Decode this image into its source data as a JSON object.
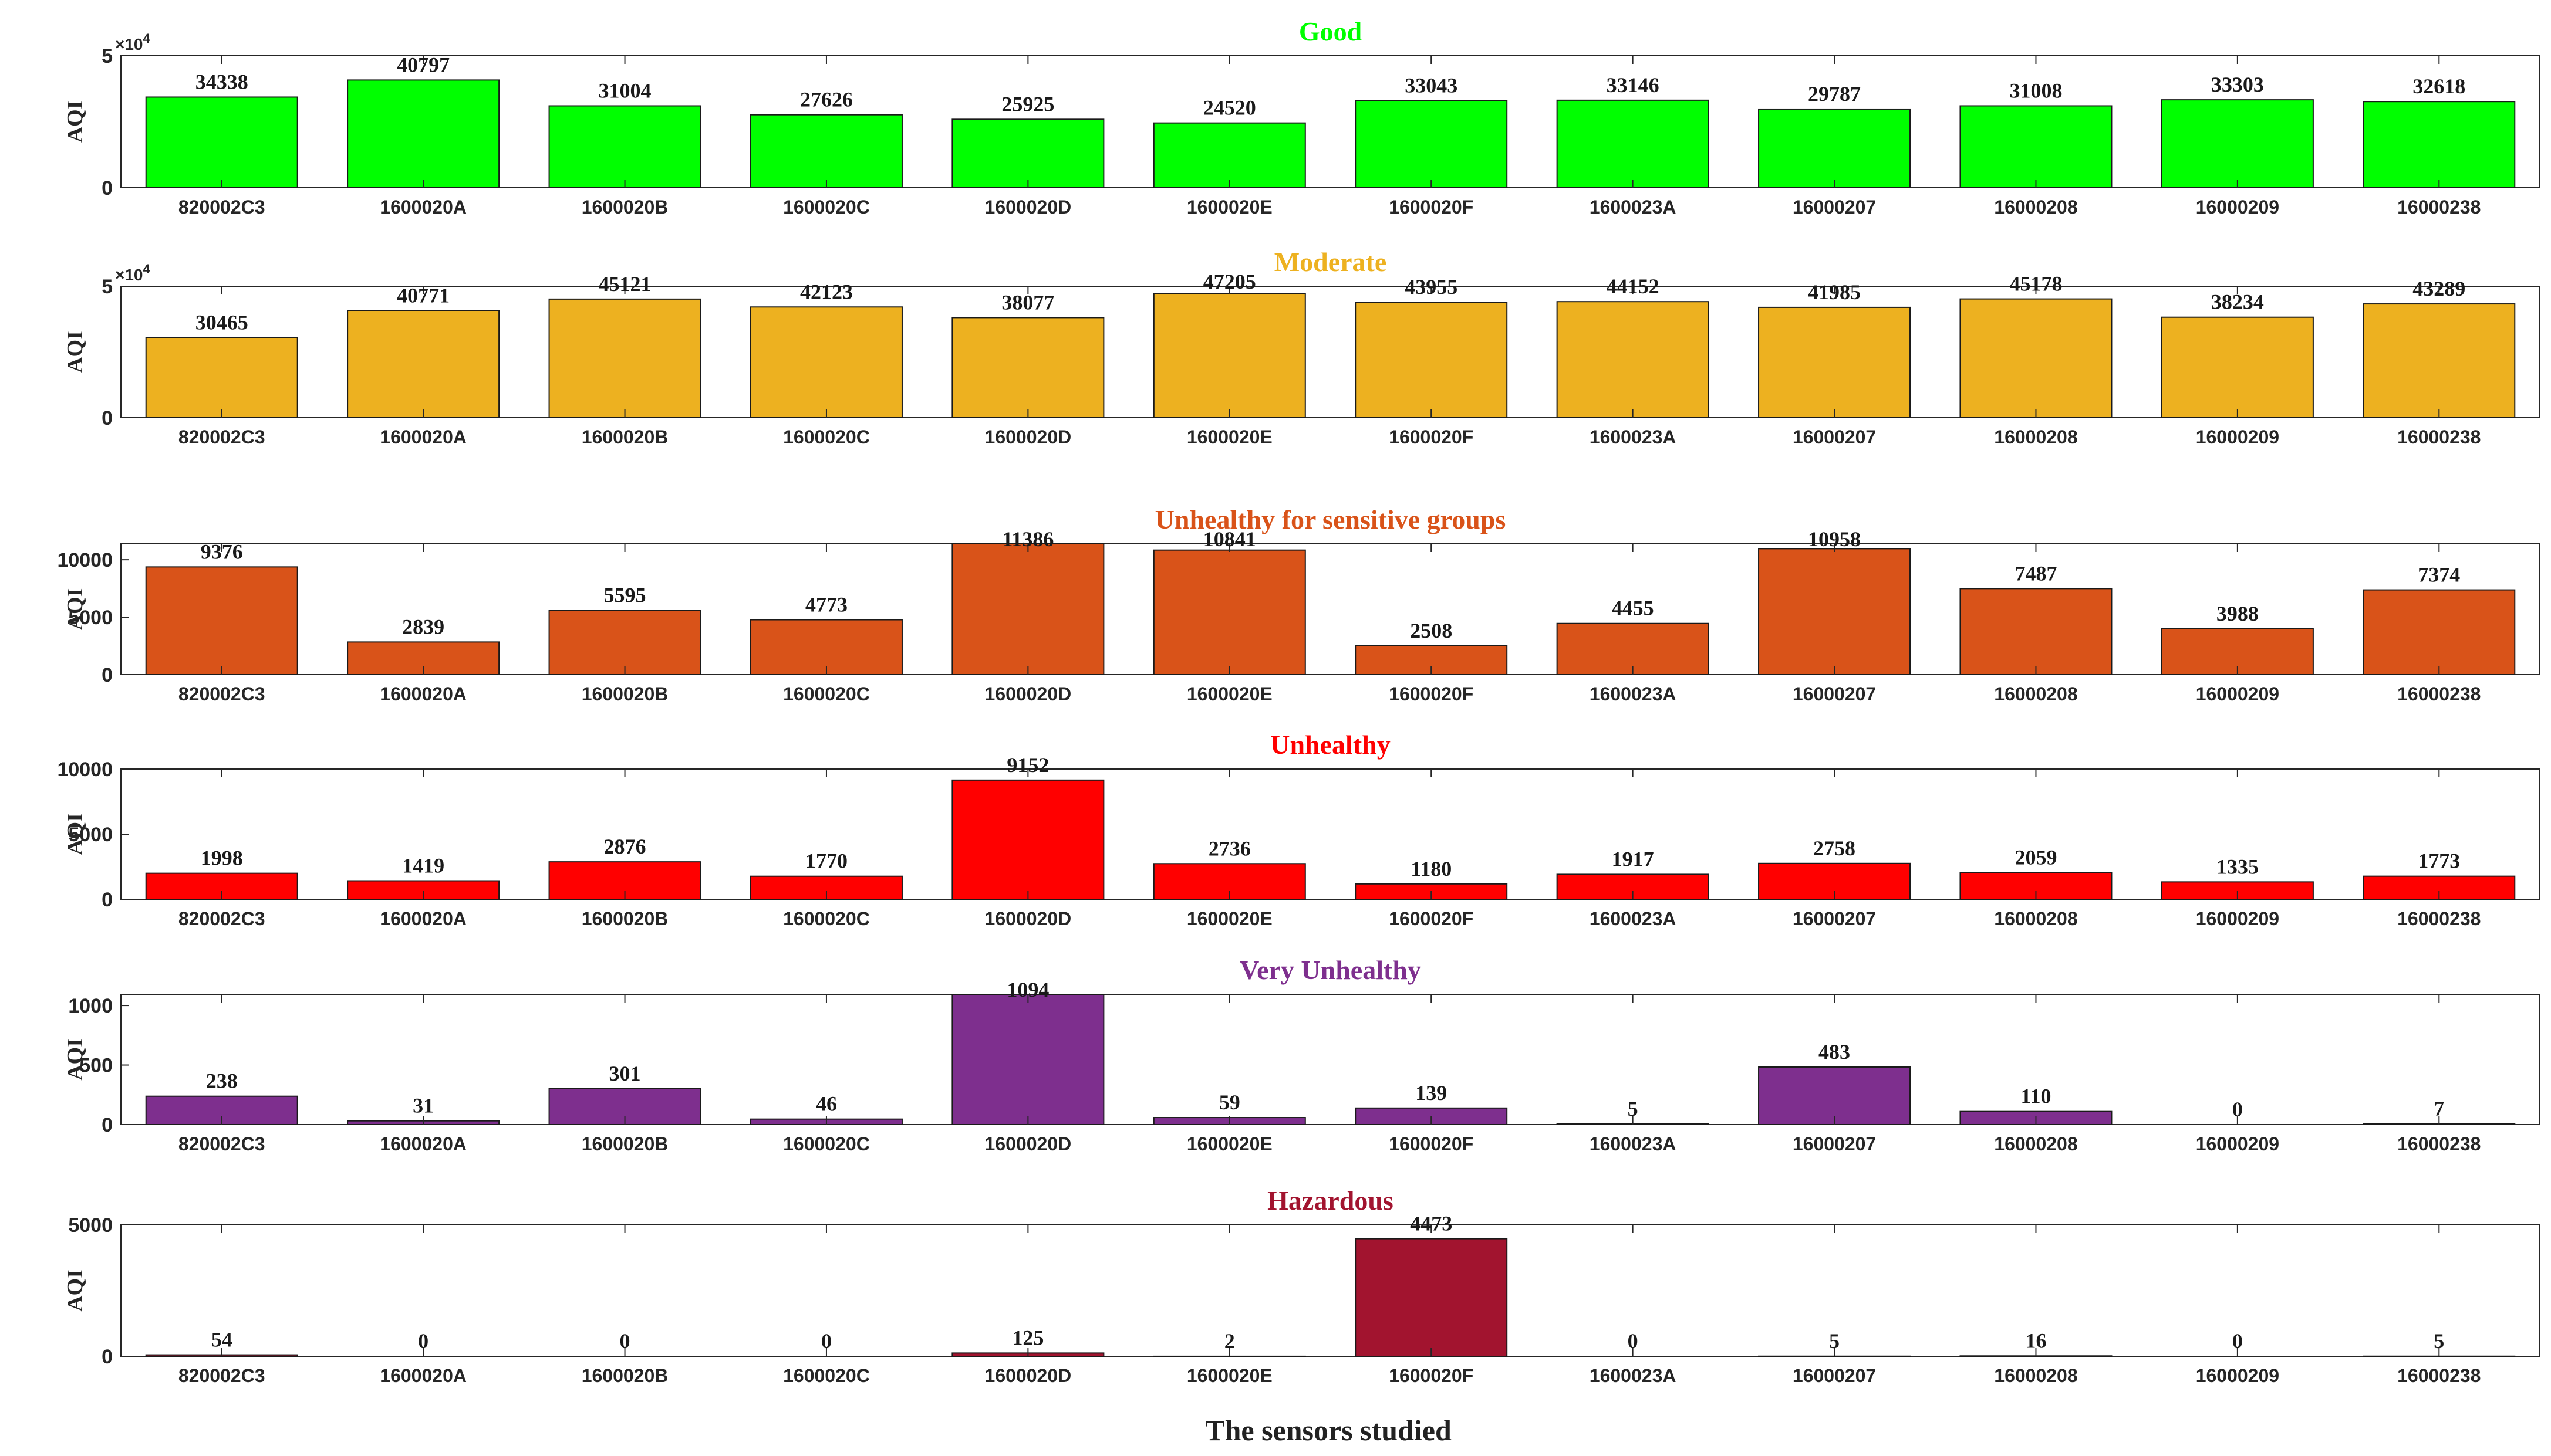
{
  "chart_data": {
    "type": "bar",
    "xlabel": "The sensors studied",
    "ylabel": "AQI",
    "categories": [
      "820002C3",
      "1600020A",
      "1600020B",
      "1600020C",
      "1600020D",
      "1600020E",
      "1600020F",
      "1600023A",
      "16000207",
      "16000208",
      "16000209",
      "16000238"
    ],
    "panels": [
      {
        "title": "Good",
        "color": "#00FF00",
        "ylim": [
          0,
          50000
        ],
        "yticks": [
          "0",
          "5"
        ],
        "exponent_label": "×10",
        "exponent_power": "4",
        "values": [
          34338,
          40797,
          31004,
          27626,
          25925,
          24520,
          33043,
          33146,
          29787,
          31008,
          33303,
          32618
        ]
      },
      {
        "title": "Moderate",
        "color": "#EDB120",
        "ylim": [
          0,
          50000
        ],
        "yticks": [
          "0",
          "5"
        ],
        "exponent_label": "×10",
        "exponent_power": "4",
        "values": [
          30465,
          40771,
          45121,
          42123,
          38077,
          47205,
          43955,
          44152,
          41985,
          45178,
          38234,
          43289
        ]
      },
      {
        "title": "Unhealthy for sensitive groups",
        "color": "#D95319",
        "ylim": [
          0,
          11386
        ],
        "yticks": [
          "0",
          "5000",
          "10000"
        ],
        "values": [
          9376,
          2839,
          5595,
          4773,
          11386,
          10841,
          2508,
          4455,
          10958,
          7487,
          3988,
          7374
        ]
      },
      {
        "title": "Unhealthy",
        "color": "#FF0000",
        "ylim": [
          0,
          10000
        ],
        "yticks": [
          "0",
          "5000",
          "10000"
        ],
        "values": [
          1998,
          1419,
          2876,
          1770,
          9152,
          2736,
          1180,
          1917,
          2758,
          2059,
          1335,
          1773
        ]
      },
      {
        "title": "Very Unhealthy",
        "color": "#7E2F8E",
        "ylim": [
          0,
          1094
        ],
        "yticks": [
          "0",
          "500",
          "1000"
        ],
        "values": [
          238,
          31,
          301,
          46,
          1094,
          59,
          139,
          5,
          483,
          110,
          0,
          7
        ]
      },
      {
        "title": "Hazardous",
        "color": "#A2142F",
        "ylim": [
          0,
          5000
        ],
        "yticks": [
          "0",
          "5000"
        ],
        "values": [
          54,
          0,
          0,
          0,
          125,
          2,
          4473,
          0,
          5,
          16,
          0,
          5
        ]
      }
    ]
  }
}
